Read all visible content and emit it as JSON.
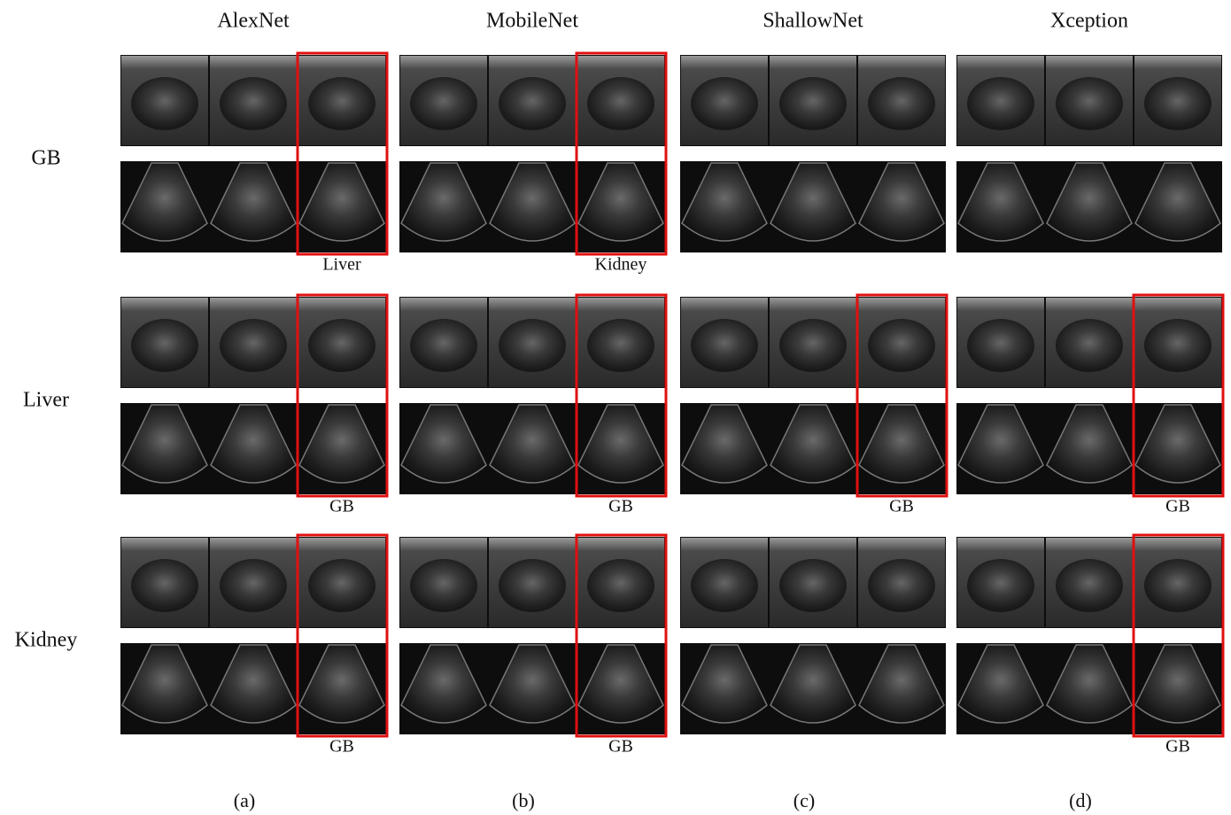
{
  "figure": {
    "rows": [
      "GB",
      "Liver",
      "Kidney"
    ],
    "columns": [
      {
        "title": "AlexNet",
        "panel": "(a)",
        "predictions": {
          "GB": "Liver",
          "Liver": "GB",
          "Kidney": "GB"
        }
      },
      {
        "title": "MobileNet",
        "panel": "(b)",
        "predictions": {
          "GB": "Kidney",
          "Liver": "GB",
          "Kidney": "GB"
        }
      },
      {
        "title": "ShallowNet",
        "panel": "(c)",
        "predictions": {
          "Liver": "GB"
        }
      },
      {
        "title": "Xception",
        "panel": "(d)",
        "predictions": {
          "Liver": "GB",
          "Kidney": "GB"
        }
      }
    ]
  }
}
